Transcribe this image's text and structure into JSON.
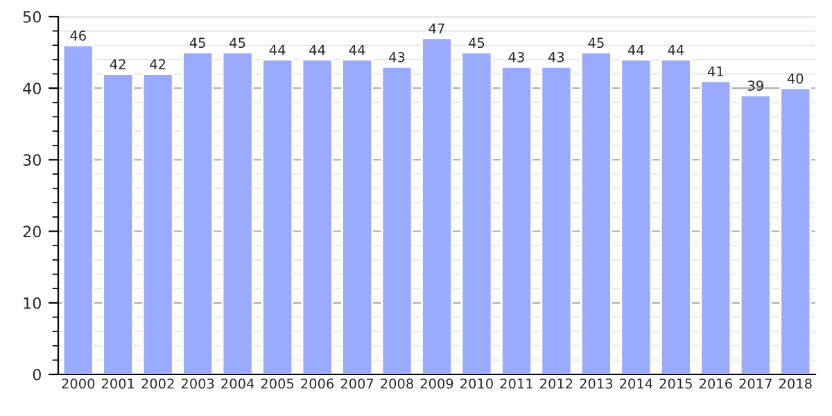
{
  "chart_data": {
    "type": "bar",
    "categories": [
      "2000",
      "2001",
      "2002",
      "2003",
      "2004",
      "2005",
      "2006",
      "2007",
      "2008",
      "2009",
      "2010",
      "2011",
      "2012",
      "2013",
      "2014",
      "2015",
      "2016",
      "2017",
      "2018"
    ],
    "values": [
      46,
      42,
      42,
      45,
      45,
      44,
      44,
      44,
      43,
      47,
      45,
      43,
      43,
      45,
      44,
      44,
      41,
      39,
      40
    ],
    "color": "#99aaff",
    "data_labels": true,
    "ylim": [
      0,
      50
    ],
    "yticks": [
      0,
      {
        "value": 2,
        "label": null
      },
      {
        "value": 4,
        "label": null
      },
      {
        "value": 6,
        "label": null
      },
      {
        "value": 8,
        "label": null
      },
      10,
      {
        "value": 12,
        "label": null
      },
      {
        "value": 14,
        "label": null
      },
      {
        "value": 16,
        "label": null
      },
      {
        "value": 18,
        "label": null
      },
      20,
      {
        "value": 22,
        "label": null
      },
      {
        "value": 24,
        "label": null
      },
      {
        "value": 26,
        "label": null
      },
      {
        "value": 28,
        "label": null
      },
      30,
      {
        "value": 32,
        "label": null
      },
      {
        "value": 34,
        "label": null
      },
      {
        "value": 36,
        "label": null
      },
      {
        "value": 38,
        "label": null
      },
      40,
      {
        "value": 42,
        "label": null
      },
      {
        "value": 44,
        "label": null
      },
      {
        "value": 46,
        "label": null
      },
      {
        "value": 48,
        "label": null
      },
      50
    ],
    "grid": "y"
  }
}
